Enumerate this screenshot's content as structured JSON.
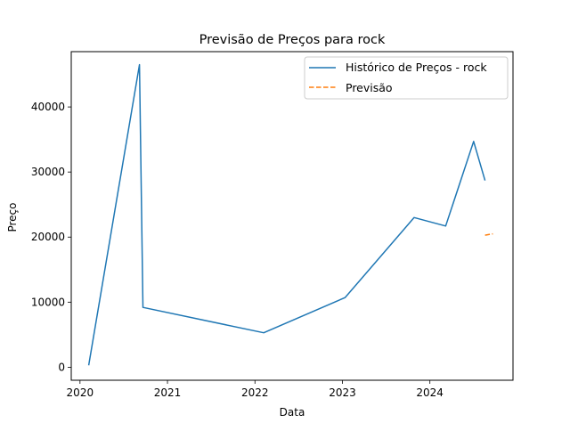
{
  "chart_data": {
    "type": "line",
    "title": "Previsão de Preços para rock",
    "xlabel": "Data",
    "ylabel": "Preço",
    "xlim": [
      2019.9,
      2024.95
    ],
    "ylim": [
      -2000,
      48500
    ],
    "xticks": [
      2020,
      2021,
      2022,
      2023,
      2024
    ],
    "yticks": [
      0,
      10000,
      20000,
      30000,
      40000
    ],
    "grid": false,
    "legend_position": "upper right",
    "series": [
      {
        "name": "Histórico de Preços - rock",
        "color": "#1f77b4",
        "style": "solid",
        "x": [
          2020.1,
          2020.68,
          2020.72,
          2022.1,
          2023.03,
          2023.82,
          2024.18,
          2024.5,
          2024.63
        ],
        "y": [
          300,
          46500,
          9200,
          5300,
          10700,
          23000,
          21700,
          34700,
          28700
        ]
      },
      {
        "name": "Previsão",
        "color": "#ff7f0e",
        "style": "dashed",
        "x": [
          2024.63,
          2024.72
        ],
        "y": [
          20300,
          20500
        ]
      }
    ]
  }
}
